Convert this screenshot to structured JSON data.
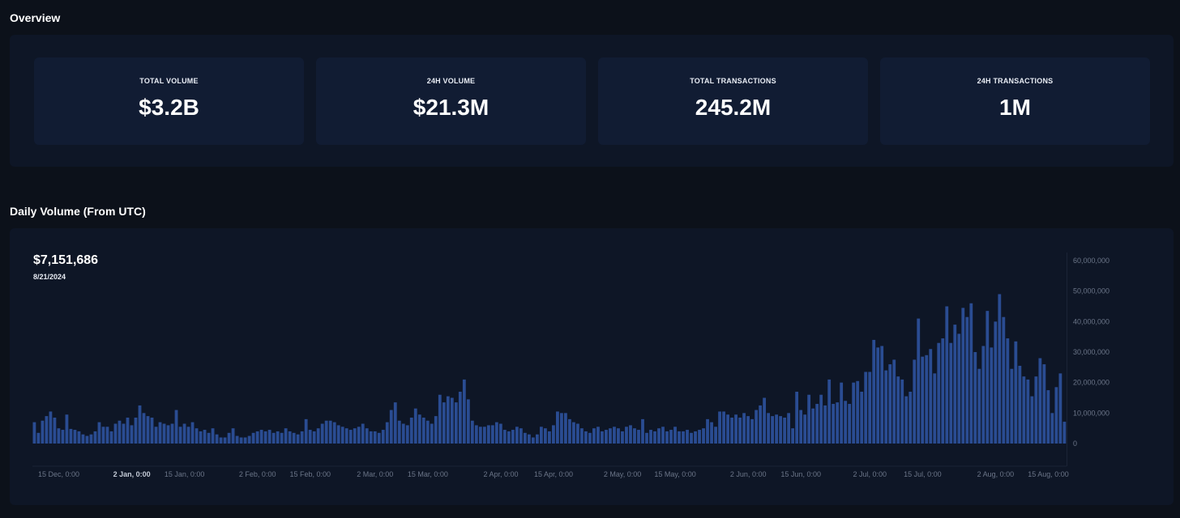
{
  "overview": {
    "title": "Overview",
    "stats": [
      {
        "label": "TOTAL VOLUME",
        "value": "$3.2B"
      },
      {
        "label": "24H VOLUME",
        "value": "$21.3M"
      },
      {
        "label": "TOTAL TRANSACTIONS",
        "value": "245.2M"
      },
      {
        "label": "24H TRANSACTIONS",
        "value": "1M"
      }
    ]
  },
  "daily": {
    "title": "Daily Volume (From UTC)",
    "hover_value": "$7,151,686",
    "hover_date": "8/21/2024"
  },
  "colors": {
    "bar": "#2a4c92",
    "background": "#0c111a",
    "panel": "#0e1626",
    "card": "#111c33"
  },
  "chart_data": {
    "type": "bar",
    "x_start": "2023-12-09",
    "x_end": "2024-08-21",
    "ylim": [
      0,
      60000000
    ],
    "y_ticks": [
      "0",
      "10,000,000",
      "20,000,000",
      "30,000,000",
      "40,000,000",
      "50,000,000",
      "60,000,000"
    ],
    "x_ticks": [
      {
        "date": "2023-12-15",
        "label": "15 Dec, 0:00"
      },
      {
        "date": "2024-01-02",
        "label": "2 Jan, 0:00",
        "bold": true
      },
      {
        "date": "2024-01-15",
        "label": "15 Jan, 0:00"
      },
      {
        "date": "2024-02-02",
        "label": "2 Feb, 0:00"
      },
      {
        "date": "2024-02-15",
        "label": "15 Feb, 0:00"
      },
      {
        "date": "2024-03-02",
        "label": "2 Mar, 0:00"
      },
      {
        "date": "2024-03-15",
        "label": "15 Mar, 0:00"
      },
      {
        "date": "2024-04-02",
        "label": "2 Apr, 0:00"
      },
      {
        "date": "2024-04-15",
        "label": "15 Apr, 0:00"
      },
      {
        "date": "2024-05-02",
        "label": "2 May, 0:00"
      },
      {
        "date": "2024-05-15",
        "label": "15 May, 0:00"
      },
      {
        "date": "2024-06-02",
        "label": "2 Jun, 0:00"
      },
      {
        "date": "2024-06-15",
        "label": "15 Jun, 0:00"
      },
      {
        "date": "2024-07-02",
        "label": "2 Jul, 0:00"
      },
      {
        "date": "2024-07-15",
        "label": "15 Jul, 0:00"
      },
      {
        "date": "2024-08-02",
        "label": "2 Aug, 0:00"
      },
      {
        "date": "2024-08-15",
        "label": "15 Aug, 0:00"
      }
    ],
    "values": [
      7000000,
      3500000,
      7500000,
      9000000,
      10500000,
      8500000,
      5000000,
      4500000,
      9500000,
      4800000,
      4500000,
      4000000,
      3000000,
      2500000,
      3000000,
      4000000,
      7000000,
      5500000,
      5500000,
      4000000,
      6500000,
      7500000,
      6500000,
      8500000,
      6000000,
      8500000,
      12500000,
      10000000,
      9000000,
      8500000,
      5500000,
      7000000,
      6500000,
      6000000,
      6500000,
      11000000,
      5500000,
      6500000,
      5500000,
      7000000,
      5000000,
      4000000,
      4500000,
      3500000,
      5000000,
      3000000,
      2000000,
      2000000,
      3500000,
      5000000,
      2500000,
      2000000,
      2000000,
      2500000,
      3500000,
      4000000,
      4500000,
      4000000,
      4500000,
      3500000,
      4000000,
      3500000,
      5000000,
      4000000,
      3500000,
      3000000,
      4000000,
      8000000,
      4500000,
      4000000,
      5000000,
      6500000,
      7500000,
      7500000,
      7000000,
      6000000,
      5500000,
      5000000,
      4500000,
      5000000,
      5500000,
      6500000,
      5000000,
      4000000,
      4000000,
      3500000,
      4500000,
      7000000,
      11000000,
      13500000,
      7500000,
      6500000,
      6000000,
      8500000,
      11500000,
      9500000,
      8500000,
      7500000,
      6500000,
      9000000,
      16000000,
      13500000,
      15500000,
      15000000,
      13500000,
      17000000,
      21000000,
      14500000,
      7500000,
      6000000,
      5500000,
      5500000,
      6000000,
      6000000,
      7000000,
      6500000,
      4500000,
      4000000,
      4500000,
      5500000,
      5000000,
      3500000,
      3000000,
      2000000,
      3000000,
      5500000,
      5000000,
      4000000,
      6000000,
      10500000,
      10000000,
      10000000,
      8000000,
      7000000,
      6500000,
      5000000,
      4000000,
      3500000,
      5000000,
      5500000,
      4000000,
      4500000,
      5000000,
      5500000,
      5000000,
      4000000,
      5500000,
      6000000,
      5000000,
      4500000,
      8000000,
      3500000,
      4500000,
      4000000,
      5000000,
      5500000,
      4000000,
      4500000,
      5500000,
      4000000,
      4000000,
      4500000,
      3500000,
      4000000,
      4500000,
      5000000,
      8000000,
      7000000,
      5500000,
      10500000,
      10500000,
      9500000,
      8500000,
      9500000,
      8500000,
      10000000,
      9000000,
      8000000,
      11000000,
      12500000,
      15000000,
      10000000,
      9000000,
      9500000,
      9000000,
      8500000,
      10000000,
      5000000,
      17000000,
      11000000,
      9500000,
      16000000,
      11500000,
      13000000,
      16000000,
      12500000,
      21000000,
      13000000,
      13500000,
      20000000,
      14000000,
      13000000,
      20000000,
      20500000,
      17000000,
      23500000,
      23500000,
      34000000,
      31500000,
      32000000,
      24000000,
      26000000,
      27500000,
      22000000,
      21000000,
      15500000,
      17000000,
      27500000,
      41000000,
      28500000,
      29000000,
      31000000,
      23000000,
      33000000,
      34500000,
      45000000,
      33000000,
      39000000,
      36000000,
      44500000,
      41500000,
      46000000,
      30000000,
      24500000,
      32000000,
      43500000,
      31500000,
      40000000,
      49000000,
      41500000,
      34500000,
      24500000,
      33500000,
      25500000,
      22000000,
      21000000,
      15500000,
      22000000,
      28000000,
      26000000,
      17500000,
      10000000,
      18500000,
      23000000,
      7151686
    ]
  }
}
